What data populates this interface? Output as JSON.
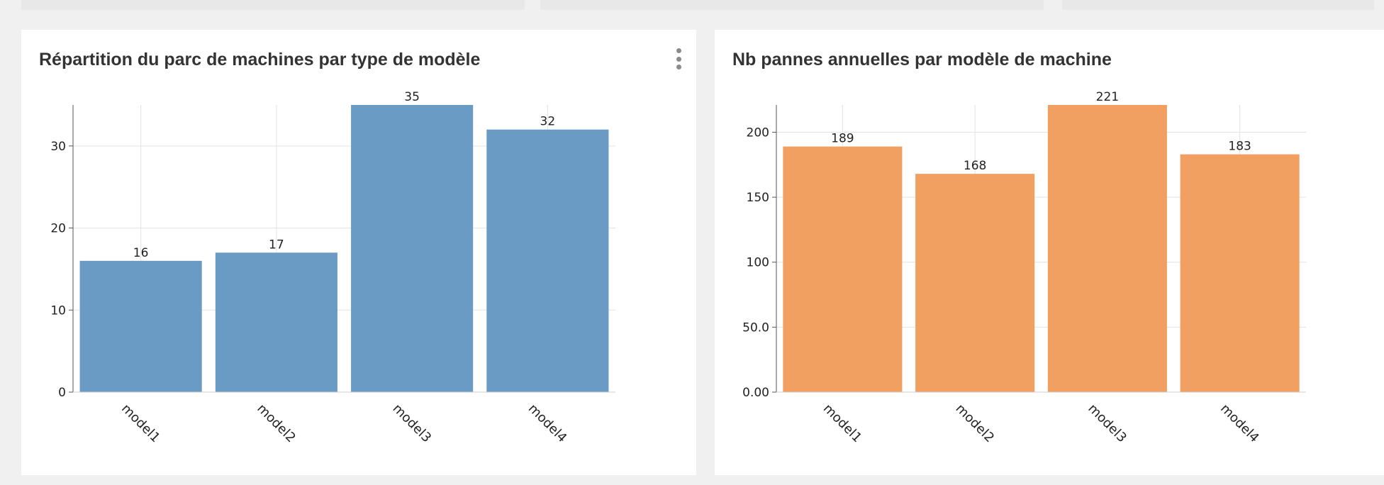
{
  "charts": [
    {
      "title": "Répartition du parc de machines par type de modèle",
      "has_menu": true
    },
    {
      "title": "Nb pannes annuelles par modèle de machine",
      "has_menu": false
    }
  ],
  "chart_data": [
    {
      "type": "bar",
      "title": "Répartition du parc de machines par type de modèle",
      "categories": [
        "model1",
        "model2",
        "model3",
        "model4"
      ],
      "values": [
        16,
        17,
        35,
        32
      ],
      "data_labels": [
        "16",
        "17",
        "35",
        "32"
      ],
      "ylim": [
        0,
        35
      ],
      "yticks": [
        0,
        10,
        20,
        30
      ],
      "ytick_labels": [
        "0",
        "10",
        "20",
        "30"
      ],
      "color": "#6a9bc5",
      "grid": true,
      "xlabel": "",
      "ylabel": ""
    },
    {
      "type": "bar",
      "title": "Nb pannes annuelles par modèle de machine",
      "categories": [
        "model1",
        "model2",
        "model3",
        "model4"
      ],
      "values": [
        189,
        168,
        221,
        183
      ],
      "data_labels": [
        "189",
        "168",
        "221",
        "183"
      ],
      "ylim": [
        0,
        221
      ],
      "yticks": [
        0,
        50,
        100,
        150,
        200
      ],
      "ytick_labels": [
        "0.00",
        "50.0",
        "100",
        "150",
        "200"
      ],
      "color": "#f2a061",
      "grid": true,
      "xlabel": "",
      "ylabel": ""
    }
  ]
}
